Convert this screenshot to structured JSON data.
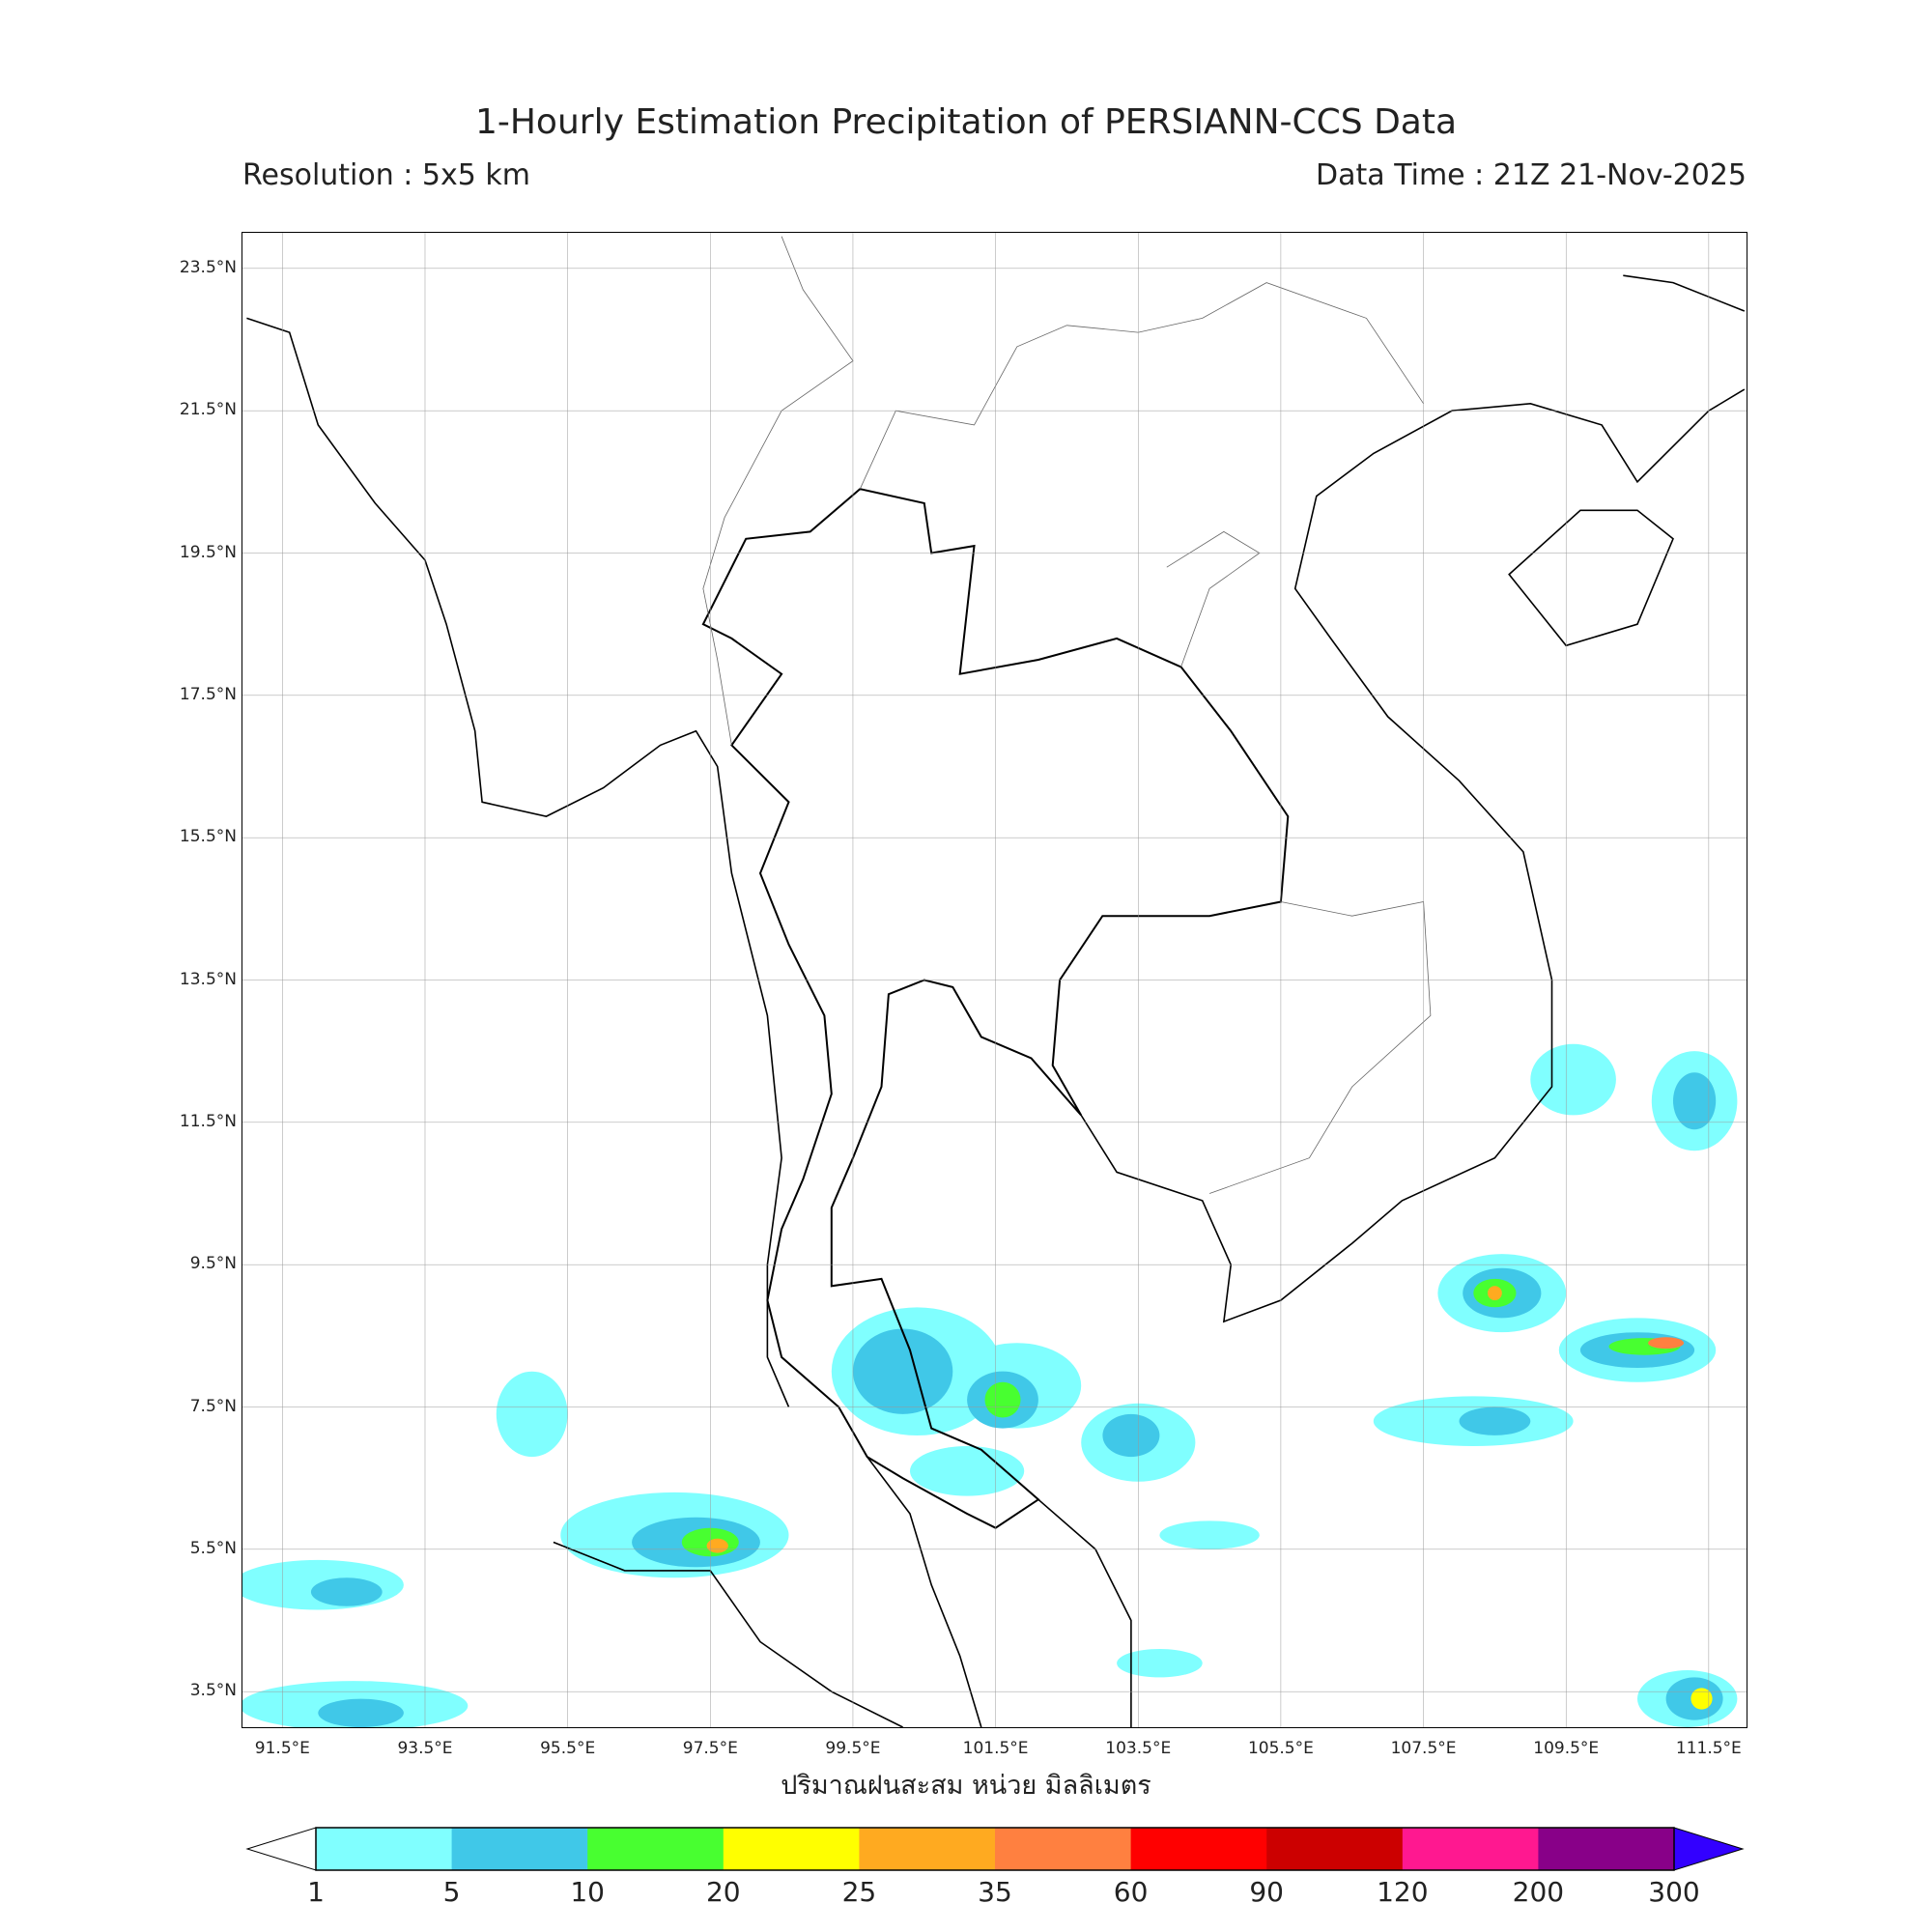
{
  "header": {
    "title": "1-Hourly Estimation Precipitation of PERSIANN-CCS Data",
    "resolution": "Resolution : 5x5 km",
    "data_time": "Data Time : 21Z 21-Nov-2025"
  },
  "map": {
    "lat_ticks": [
      "23.5°N",
      "21.5°N",
      "19.5°N",
      "17.5°N",
      "15.5°N",
      "13.5°N",
      "11.5°N",
      "9.5°N",
      "7.5°N",
      "5.5°N",
      "3.5°N"
    ],
    "lon_ticks": [
      "91.5°E",
      "93.5°E",
      "95.5°E",
      "97.5°E",
      "99.5°E",
      "101.5°E",
      "103.5°E",
      "105.5°E",
      "107.5°E",
      "109.5°E",
      "111.5°E"
    ],
    "extent_lon": [
      90.94,
      112.03
    ],
    "extent_lat": [
      3.0,
      24.0
    ],
    "grid": true
  },
  "colorbar": {
    "label": "ปริมาณฝนสะสม หน่วย มิลลิเมตร",
    "levels": [
      "1",
      "5",
      "10",
      "20",
      "25",
      "35",
      "60",
      "90",
      "120",
      "200",
      "300"
    ],
    "colors": [
      "#80ffff",
      "#40c8e8",
      "#48ff30",
      "#ffff00",
      "#ffaa20",
      "#ff8040",
      "#ff0000",
      "#cc0000",
      "#ff1890",
      "#880088"
    ],
    "over_color": "#3300ff",
    "under_color": "#ffffff"
  }
}
